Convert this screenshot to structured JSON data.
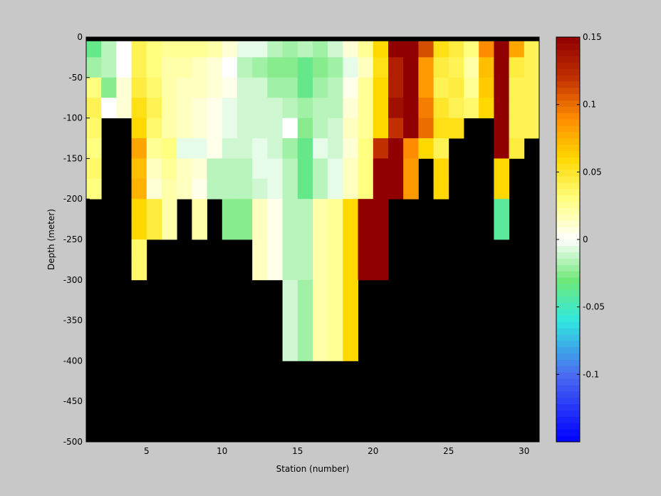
{
  "chart_data": {
    "type": "heatmap",
    "title": "",
    "xlabel": "Station (number)",
    "ylabel": "Depth (meter)",
    "xlim": [
      1,
      31
    ],
    "ylim": [
      -500,
      0
    ],
    "xticks": [
      5,
      10,
      15,
      20,
      25,
      30
    ],
    "yticks": [
      0,
      -50,
      -100,
      -150,
      -200,
      -250,
      -300,
      -350,
      -400,
      -450,
      -500
    ],
    "colorbar": {
      "clim": [
        -0.15,
        0.15
      ],
      "ticks": [
        0.15,
        0.1,
        0.05,
        0,
        -0.05,
        -0.1
      ],
      "tick_labels": [
        "0.15",
        "0.1",
        "0.05",
        "0",
        "-0.05",
        "-0.1"
      ],
      "colormap_stops": [
        {
          "v": -0.15,
          "color": "#0000ff"
        },
        {
          "v": -0.1,
          "color": "#4a6cf0"
        },
        {
          "v": -0.06,
          "color": "#30e8e0"
        },
        {
          "v": -0.03,
          "color": "#70e878"
        },
        {
          "v": 0.0,
          "color": "#ffffff"
        },
        {
          "v": 0.03,
          "color": "#ffff80"
        },
        {
          "v": 0.06,
          "color": "#ffd800"
        },
        {
          "v": 0.09,
          "color": "#ff8c00"
        },
        {
          "v": 0.12,
          "color": "#c03000"
        },
        {
          "v": 0.15,
          "color": "#900000"
        }
      ]
    },
    "missing_color": "#000000",
    "surface_band": {
      "depth_from": 0,
      "depth_to": -5,
      "color": "#000000"
    },
    "stations": [
      1,
      2,
      3,
      4,
      5,
      6,
      7,
      8,
      9,
      10,
      11,
      12,
      13,
      14,
      15,
      16,
      17,
      18,
      19,
      20,
      21,
      22,
      23,
      24,
      25,
      26,
      27,
      28,
      29,
      30
    ],
    "depth_edges": [
      -5,
      -25,
      -50,
      -75,
      -100,
      -125,
      -150,
      -175,
      -200,
      -225,
      -250,
      -275,
      -300,
      -325,
      -350,
      -375,
      -400
    ],
    "values": [
      [
        -0.035,
        -0.015,
        0.0,
        0.04,
        0.03,
        0.025,
        0.025,
        0.025,
        0.02,
        0.01,
        -0.005,
        -0.005,
        -0.015,
        -0.02,
        -0.015,
        -0.02,
        -0.01,
        0.01,
        0.025,
        0.06,
        0.15,
        0.15,
        0.11,
        0.055,
        0.045,
        0.03,
        0.09,
        0.15,
        0.08,
        0.04
      ],
      [
        -0.02,
        -0.015,
        0.0,
        0.04,
        0.03,
        0.02,
        0.02,
        0.015,
        0.01,
        0.0,
        -0.015,
        -0.02,
        -0.025,
        -0.025,
        -0.035,
        -0.025,
        -0.02,
        -0.005,
        0.015,
        0.055,
        0.13,
        0.15,
        0.085,
        0.045,
        0.04,
        0.02,
        0.07,
        0.15,
        0.045,
        0.04
      ],
      [
        0.03,
        -0.025,
        0.01,
        0.045,
        0.035,
        0.02,
        0.015,
        0.015,
        0.01,
        0.005,
        -0.01,
        -0.01,
        -0.02,
        -0.02,
        -0.035,
        -0.02,
        -0.015,
        0.005,
        0.025,
        0.06,
        0.13,
        0.15,
        0.085,
        0.04,
        0.045,
        0.025,
        0.065,
        0.15,
        0.04,
        0.04
      ],
      [
        0.04,
        0.0,
        0.01,
        0.055,
        0.04,
        0.02,
        0.015,
        0.01,
        0.005,
        -0.005,
        -0.01,
        -0.01,
        -0.01,
        -0.015,
        -0.02,
        -0.015,
        -0.015,
        0.01,
        0.025,
        0.06,
        0.14,
        0.15,
        0.095,
        0.05,
        0.04,
        0.035,
        0.06,
        0.15,
        0.04,
        0.04
      ],
      [
        0.035,
        null,
        null,
        0.06,
        0.035,
        0.02,
        0.015,
        0.01,
        0.005,
        -0.005,
        -0.01,
        -0.01,
        -0.01,
        0.0,
        -0.025,
        -0.015,
        -0.01,
        0.015,
        0.025,
        0.06,
        0.12,
        0.15,
        0.1,
        0.055,
        0.055,
        null,
        null,
        0.15,
        0.04,
        0.04
      ],
      [
        0.03,
        null,
        null,
        0.08,
        0.025,
        0.03,
        -0.005,
        -0.005,
        0.005,
        -0.01,
        -0.01,
        -0.005,
        -0.01,
        -0.02,
        -0.035,
        -0.005,
        -0.01,
        0.01,
        0.03,
        0.12,
        0.15,
        0.09,
        0.06,
        0.04,
        null,
        null,
        null,
        0.15,
        0.045,
        null
      ],
      [
        0.035,
        null,
        null,
        0.07,
        0.015,
        0.025,
        0.015,
        0.01,
        -0.015,
        -0.015,
        -0.015,
        -0.005,
        -0.005,
        -0.015,
        -0.035,
        -0.015,
        -0.005,
        0.015,
        0.03,
        0.15,
        0.15,
        0.085,
        null,
        0.06,
        null,
        null,
        null,
        0.06,
        null,
        null
      ],
      [
        0.03,
        null,
        null,
        0.075,
        0.01,
        0.02,
        0.015,
        0.005,
        -0.015,
        -0.015,
        -0.015,
        -0.01,
        -0.005,
        -0.015,
        -0.035,
        -0.015,
        -0.005,
        0.015,
        0.03,
        0.15,
        0.15,
        0.085,
        null,
        0.06,
        null,
        null,
        null,
        0.06,
        null,
        null
      ],
      [
        null,
        null,
        null,
        0.06,
        0.045,
        0.02,
        null,
        0.02,
        null,
        -0.025,
        -0.025,
        0.015,
        0.005,
        -0.015,
        -0.015,
        0.02,
        0.025,
        0.06,
        0.15,
        0.15,
        null,
        null,
        null,
        null,
        null,
        null,
        null,
        -0.04,
        null,
        null
      ],
      [
        null,
        null,
        null,
        0.06,
        0.045,
        0.02,
        null,
        0.02,
        null,
        -0.025,
        -0.025,
        0.015,
        0.005,
        -0.015,
        -0.015,
        0.02,
        0.025,
        0.06,
        0.15,
        0.15,
        null,
        null,
        null,
        null,
        null,
        null,
        null,
        -0.04,
        null,
        null
      ],
      [
        null,
        null,
        null,
        0.035,
        null,
        null,
        null,
        null,
        null,
        null,
        null,
        0.015,
        0.005,
        -0.015,
        -0.015,
        0.02,
        0.025,
        0.06,
        0.15,
        0.15,
        null,
        null,
        null,
        null,
        null,
        null,
        null,
        null,
        null,
        null
      ],
      [
        null,
        null,
        null,
        0.035,
        null,
        null,
        null,
        null,
        null,
        null,
        null,
        0.015,
        0.005,
        -0.015,
        -0.015,
        0.02,
        0.025,
        0.06,
        0.15,
        0.15,
        null,
        null,
        null,
        null,
        null,
        null,
        null,
        null,
        null,
        null
      ],
      [
        null,
        null,
        null,
        null,
        null,
        null,
        null,
        null,
        null,
        null,
        null,
        null,
        null,
        -0.01,
        -0.02,
        0.02,
        0.025,
        0.06,
        null,
        null,
        null,
        null,
        null,
        null,
        null,
        null,
        null,
        null,
        null,
        null
      ],
      [
        null,
        null,
        null,
        null,
        null,
        null,
        null,
        null,
        null,
        null,
        null,
        null,
        null,
        -0.01,
        -0.02,
        0.02,
        0.025,
        0.06,
        null,
        null,
        null,
        null,
        null,
        null,
        null,
        null,
        null,
        null,
        null,
        null
      ],
      [
        null,
        null,
        null,
        null,
        null,
        null,
        null,
        null,
        null,
        null,
        null,
        null,
        null,
        -0.01,
        -0.02,
        0.02,
        0.025,
        0.06,
        null,
        null,
        null,
        null,
        null,
        null,
        null,
        null,
        null,
        null,
        null,
        null
      ],
      [
        null,
        null,
        null,
        null,
        null,
        null,
        null,
        null,
        null,
        null,
        null,
        null,
        null,
        -0.01,
        -0.02,
        0.02,
        0.025,
        0.06,
        null,
        null,
        null,
        null,
        null,
        null,
        null,
        null,
        null,
        null,
        null,
        null
      ]
    ]
  }
}
